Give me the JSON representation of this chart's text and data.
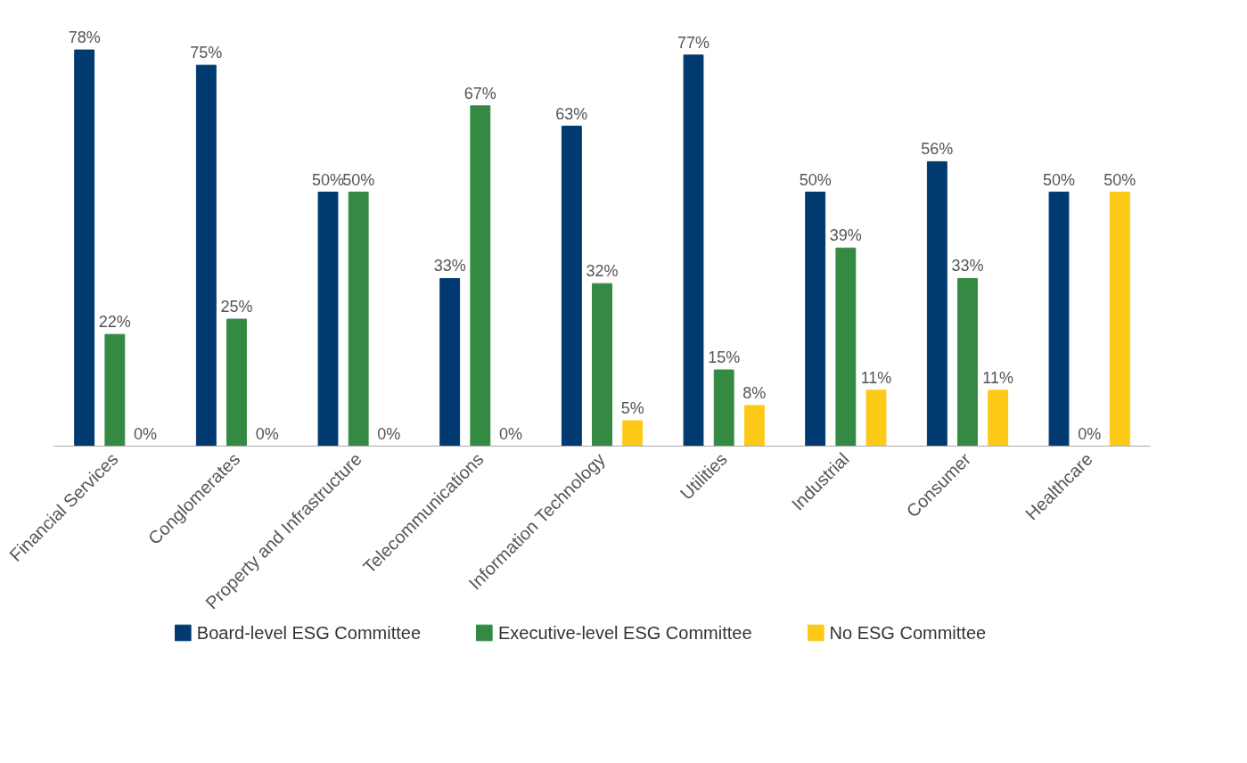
{
  "chart_data": {
    "type": "bar",
    "categories": [
      "Financial Services",
      "Conglomerates",
      "Property and Infrastructure",
      "Telecommunications",
      "Information Technology",
      "Utilities",
      "Industrial",
      "Consumer",
      "Healthcare"
    ],
    "series": [
      {
        "name": "Board-level ESG Committee",
        "color": "#003a70",
        "values": [
          78,
          75,
          50,
          33,
          63,
          77,
          50,
          56,
          50
        ],
        "value_labels": [
          "78%",
          "75%",
          "50%",
          "33%",
          "63%",
          "77%",
          "50%",
          "56%",
          "50%"
        ]
      },
      {
        "name": "Executive-level ESG Committee",
        "color": "#348a42",
        "values": [
          22,
          25,
          50,
          67,
          32,
          15,
          39,
          33,
          0
        ],
        "value_labels": [
          "22%",
          "25%",
          "50%",
          "67%",
          "32%",
          "15%",
          "39%",
          "33%",
          "0%"
        ]
      },
      {
        "name": "No ESG Committee",
        "color": "#fcc916",
        "values": [
          0,
          0,
          0,
          0,
          5,
          8,
          11,
          11,
          50
        ],
        "value_labels": [
          "0%",
          "0%",
          "0%",
          "0%",
          "5%",
          "8%",
          "11%",
          "11%",
          "50%"
        ]
      }
    ],
    "legend": "bottom",
    "grid": false,
    "tick_labels": "x"
  }
}
